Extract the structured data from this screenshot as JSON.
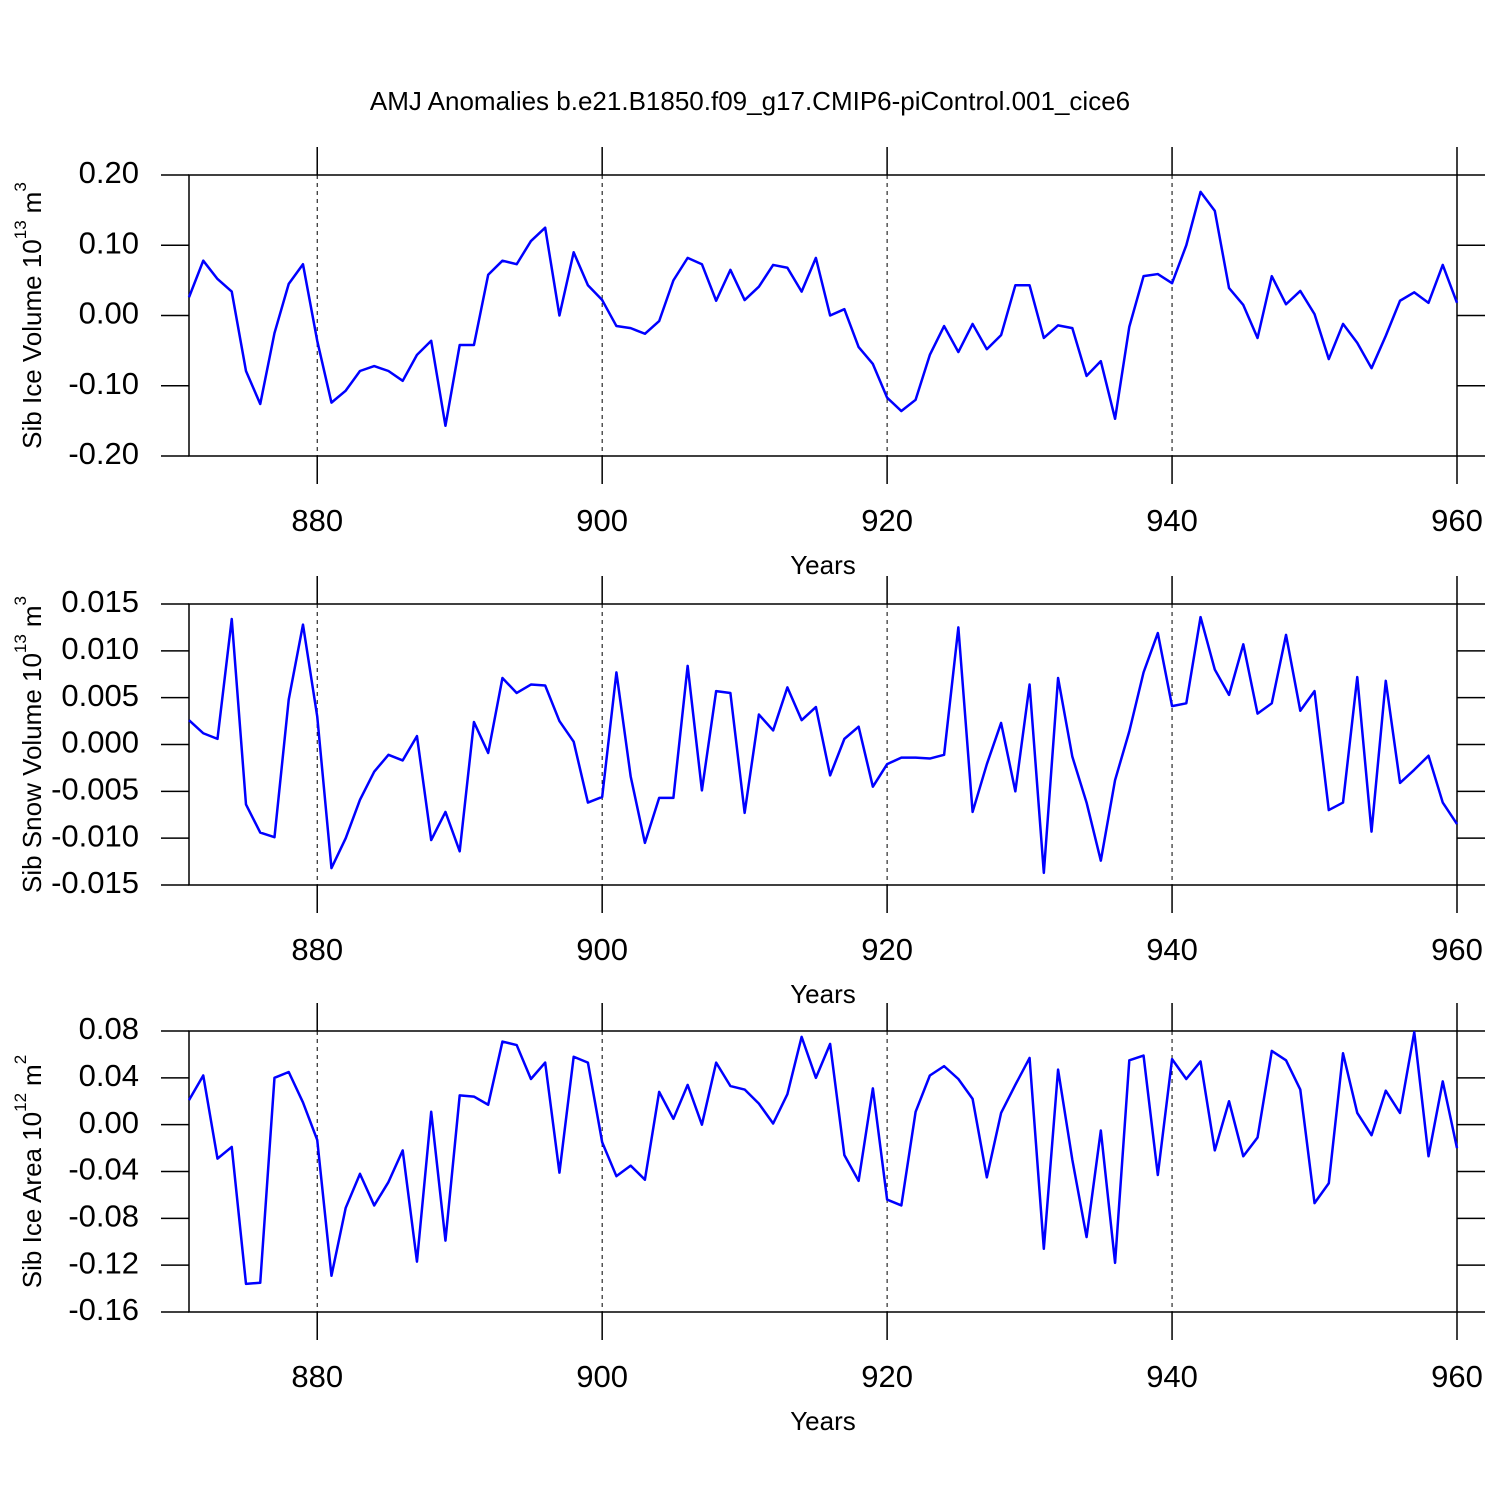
{
  "chart_data": [
    {
      "type": "line",
      "title": "AMJ Anomalies b.e21.B1850.f09_g17.CMIP6-piControl.001_cice6",
      "xlabel": "Years",
      "ylabel": [
        "Sib Ice Volume 10",
        "13",
        "m",
        "3"
      ],
      "x": [
        871,
        872,
        873,
        874,
        875,
        876,
        877,
        878,
        879,
        880,
        881,
        882,
        883,
        884,
        885,
        886,
        887,
        888,
        889,
        890,
        891,
        892,
        893,
        894,
        895,
        896,
        897,
        898,
        899,
        900,
        901,
        902,
        903,
        904,
        905,
        906,
        907,
        908,
        909,
        910,
        911,
        912,
        913,
        914,
        915,
        916,
        917,
        918,
        919,
        920,
        921,
        922,
        923,
        924,
        925,
        926,
        927,
        928,
        929,
        930,
        931,
        932,
        933,
        934,
        935,
        936,
        937,
        938,
        939,
        940,
        941,
        942,
        943,
        944,
        945,
        946,
        947,
        948,
        949,
        950,
        951,
        952,
        953,
        954,
        955,
        956,
        957,
        958,
        959,
        960
      ],
      "series": [
        {
          "color": "#0000ff",
          "values": [
            0.026,
            0.078,
            0.052,
            0.034,
            -0.079,
            -0.126,
            -0.025,
            0.045,
            0.073,
            -0.036,
            -0.124,
            -0.107,
            -0.079,
            -0.072,
            -0.079,
            -0.093,
            -0.056,
            -0.036,
            -0.157,
            -0.042,
            -0.042,
            0.058,
            0.078,
            0.073,
            0.106,
            0.125,
            0.0,
            0.09,
            0.043,
            0.022,
            -0.015,
            -0.018,
            -0.026,
            -0.008,
            0.05,
            0.082,
            0.073,
            0.021,
            0.065,
            0.022,
            0.041,
            0.072,
            0.068,
            0.034,
            0.082,
            0.0,
            0.009,
            -0.045,
            -0.069,
            -0.117,
            -0.136,
            -0.12,
            -0.056,
            -0.015,
            -0.052,
            -0.012,
            -0.048,
            -0.028,
            0.043,
            0.043,
            -0.032,
            -0.014,
            -0.018,
            -0.086,
            -0.065,
            -0.147,
            -0.016,
            0.056,
            0.059,
            0.046,
            0.1,
            0.176,
            0.149,
            0.039,
            0.015,
            -0.032,
            0.056,
            0.016,
            0.035,
            0.002,
            -0.062,
            -0.012,
            -0.039,
            -0.075,
            -0.029,
            0.021,
            0.033,
            0.018,
            0.072,
            0.018
          ]
        }
      ],
      "xlim": [
        871,
        960
      ],
      "xticks": [
        880,
        900,
        920,
        940,
        960
      ],
      "ylim": [
        -0.2,
        0.2
      ],
      "yticks": [
        {
          "value": -0.2,
          "label": "-0.20"
        },
        {
          "value": -0.1,
          "label": "-0.10"
        },
        {
          "value": 0,
          "label": "0.00"
        },
        {
          "value": 0.1,
          "label": "0.10"
        },
        {
          "value": 0.2,
          "label": "0.20"
        }
      ],
      "xgrid": true
    },
    {
      "type": "line",
      "xlabel": "Years",
      "ylabel": [
        "Sib Snow Volume 10",
        "13",
        "m",
        "3"
      ],
      "x": [
        871,
        872,
        873,
        874,
        875,
        876,
        877,
        878,
        879,
        880,
        881,
        882,
        883,
        884,
        885,
        886,
        887,
        888,
        889,
        890,
        891,
        892,
        893,
        894,
        895,
        896,
        897,
        898,
        899,
        900,
        901,
        902,
        903,
        904,
        905,
        906,
        907,
        908,
        909,
        910,
        911,
        912,
        913,
        914,
        915,
        916,
        917,
        918,
        919,
        920,
        921,
        922,
        923,
        924,
        925,
        926,
        927,
        928,
        929,
        930,
        931,
        932,
        933,
        934,
        935,
        936,
        937,
        938,
        939,
        940,
        941,
        942,
        943,
        944,
        945,
        946,
        947,
        948,
        949,
        950,
        951,
        952,
        953,
        954,
        955,
        956,
        957,
        958,
        959,
        960
      ],
      "series": [
        {
          "color": "#0000ff",
          "values": [
            0.0026,
            0.0012,
            0.0006,
            0.0134,
            -0.0064,
            -0.0094,
            -0.0099,
            0.0048,
            0.0128,
            0.003,
            -0.0132,
            -0.01,
            -0.0059,
            -0.0029,
            -0.0011,
            -0.0017,
            0.0009,
            -0.0102,
            -0.0072,
            -0.0114,
            0.0024,
            -0.0009,
            0.0071,
            0.0055,
            0.0064,
            0.0063,
            0.0025,
            0.0003,
            -0.0062,
            -0.0056,
            0.0077,
            -0.0034,
            -0.0105,
            -0.0057,
            -0.0057,
            0.0084,
            -0.0049,
            0.0057,
            0.0055,
            -0.0073,
            0.0032,
            0.0015,
            0.0061,
            0.0026,
            0.004,
            -0.0033,
            0.0006,
            0.0019,
            -0.0045,
            -0.0021,
            -0.0014,
            -0.0014,
            -0.0015,
            -0.0011,
            0.0125,
            -0.0072,
            -0.0021,
            0.0023,
            -0.005,
            0.0064,
            -0.0137,
            0.0071,
            -0.0013,
            -0.0062,
            -0.0124,
            -0.0038,
            0.0014,
            0.0077,
            0.0119,
            0.0041,
            0.0044,
            0.0136,
            0.008,
            0.0053,
            0.0107,
            0.0033,
            0.0044,
            0.0117,
            0.0036,
            0.0057,
            -0.007,
            -0.0062,
            0.0072,
            -0.0093,
            0.0068,
            -0.0041,
            -0.0027,
            -0.0012,
            -0.0062,
            -0.0085
          ]
        }
      ],
      "xlim": [
        871,
        960
      ],
      "xticks": [
        880,
        900,
        920,
        940,
        960
      ],
      "ylim": [
        -0.015,
        0.015
      ],
      "yticks": [
        -0.015,
        {
          "value": -0.01,
          "label": "-0.010"
        },
        -0.005,
        {
          "value": 0,
          "label": "0.000"
        },
        0.005,
        {
          "value": 0.01,
          "label": "0.010"
        },
        0.015
      ],
      "xgrid": true
    },
    {
      "type": "line",
      "xlabel": "Years",
      "ylabel": [
        "Sib Ice Area 10",
        "12",
        "m",
        "2"
      ],
      "x": [
        871,
        872,
        873,
        874,
        875,
        876,
        877,
        878,
        879,
        880,
        881,
        882,
        883,
        884,
        885,
        886,
        887,
        888,
        889,
        890,
        891,
        892,
        893,
        894,
        895,
        896,
        897,
        898,
        899,
        900,
        901,
        902,
        903,
        904,
        905,
        906,
        907,
        908,
        909,
        910,
        911,
        912,
        913,
        914,
        915,
        916,
        917,
        918,
        919,
        920,
        921,
        922,
        923,
        924,
        925,
        926,
        927,
        928,
        929,
        930,
        931,
        932,
        933,
        934,
        935,
        936,
        937,
        938,
        939,
        940,
        941,
        942,
        943,
        944,
        945,
        946,
        947,
        948,
        949,
        950,
        951,
        952,
        953,
        954,
        955,
        956,
        957,
        958,
        959,
        960
      ],
      "series": [
        {
          "color": "#0000ff",
          "values": [
            0.021,
            0.042,
            -0.029,
            -0.019,
            -0.136,
            -0.135,
            0.04,
            0.045,
            0.019,
            -0.013,
            -0.129,
            -0.071,
            -0.042,
            -0.069,
            -0.049,
            -0.022,
            -0.117,
            0.011,
            -0.099,
            0.025,
            0.024,
            0.017,
            0.071,
            0.068,
            0.039,
            0.053,
            -0.041,
            0.058,
            0.053,
            -0.015,
            -0.044,
            -0.035,
            -0.047,
            0.028,
            0.005,
            0.034,
            0.0,
            0.053,
            0.033,
            0.03,
            0.018,
            0.001,
            0.026,
            0.075,
            0.04,
            0.069,
            -0.026,
            -0.048,
            0.031,
            -0.064,
            -0.069,
            0.011,
            0.042,
            0.05,
            0.039,
            0.022,
            -0.045,
            0.01,
            0.034,
            0.057,
            -0.106,
            0.047,
            -0.03,
            -0.096,
            -0.005,
            -0.118,
            0.055,
            0.059,
            -0.043,
            0.056,
            0.039,
            0.054,
            -0.022,
            0.02,
            -0.027,
            -0.011,
            0.063,
            0.055,
            0.03,
            -0.067,
            -0.05,
            0.061,
            0.01,
            -0.009,
            0.029,
            0.01,
            0.079,
            -0.027,
            0.037,
            -0.02
          ]
        }
      ],
      "xlim": [
        871,
        960
      ],
      "xticks": [
        880,
        900,
        920,
        940,
        960
      ],
      "ylim": [
        -0.16,
        0.08
      ],
      "yticks": [
        -0.16,
        -0.12,
        -0.08,
        -0.04,
        {
          "value": 0,
          "label": "0.00"
        },
        0.04,
        0.08
      ],
      "xgrid": true
    }
  ]
}
